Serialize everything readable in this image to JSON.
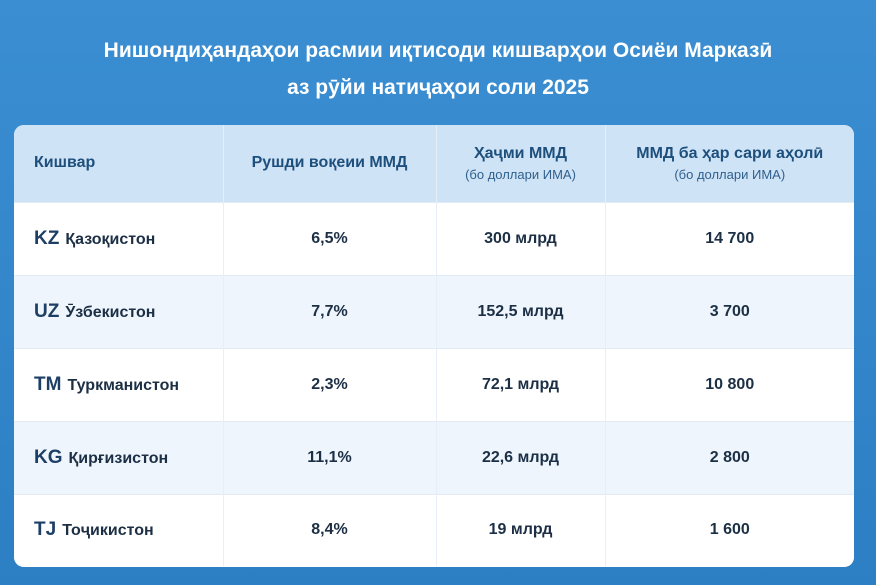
{
  "title": {
    "line1": "Нишондиҳандаҳои расмии иқтисоди кишварҳои Осиёи Марказӣ",
    "line2": "аз рӯйи натиҷаҳои соли 2025"
  },
  "table": {
    "headers": {
      "country": "Кишвар",
      "growth": "Рушди воқеии ММД",
      "gdp": "Ҳаҷми ММД",
      "gdp_sub": "(бо доллари ИМА)",
      "per_capita": "ММД ба ҳар сари аҳолӣ",
      "per_capita_sub": "(бо доллари ИМА)"
    },
    "rows": [
      {
        "code": "KZ",
        "name": "Қазоқистон",
        "growth": "6,5%",
        "gdp": "300 млрд",
        "per_capita": "14 700"
      },
      {
        "code": "UZ",
        "name": "Ӯзбекистон",
        "growth": "7,7%",
        "gdp": "152,5 млрд",
        "per_capita": "3 700"
      },
      {
        "code": "TM",
        "name": "Туркманистон",
        "growth": "2,3%",
        "gdp": "72,1 млрд",
        "per_capita": "10 800"
      },
      {
        "code": "KG",
        "name": "Қирғизистон",
        "growth": "11,1%",
        "gdp": "22,6 млрд",
        "per_capita": "2 800"
      },
      {
        "code": "TJ",
        "name": "Тоҷикистон",
        "growth": "8,4%",
        "gdp": "19 млрд",
        "per_capita": "1 600"
      }
    ]
  },
  "colors": {
    "background": "#2d7fc4",
    "header_bg": "#cfe3f6",
    "row_alt_bg": "#eef5fc",
    "header_text": "#1d4f7d",
    "body_text": "#1c2f45"
  }
}
